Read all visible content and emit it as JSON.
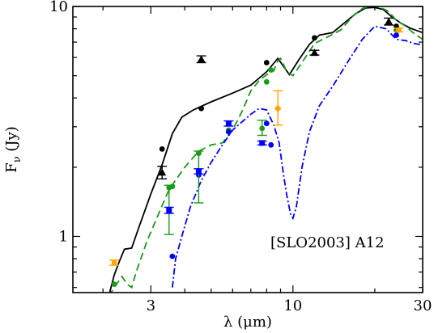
{
  "chart_data": {
    "type": "scatter",
    "annotation": "[SLO2003] A12",
    "xlabel": "λ (μm)",
    "ylabel": "F_ν (Jy)",
    "ylabel_main": "F",
    "ylabel_sub": "ν",
    "ylabel_rest": " (Jy)",
    "x_scale": "log",
    "y_scale": "log",
    "xlim": [
      1.55,
      30
    ],
    "ylim": [
      0.57,
      10
    ],
    "x_ticks": [
      {
        "value": 3,
        "label": "3"
      },
      {
        "value": 10,
        "label": "10"
      },
      {
        "value": 30,
        "label": "30"
      }
    ],
    "y_ticks": [
      {
        "value": 1,
        "label": "1"
      },
      {
        "value": 10,
        "label": "10"
      }
    ],
    "colors": {
      "black": "#000000",
      "green": "#1a9a1a",
      "blue": "#0000ff",
      "orange": "#ffa500"
    },
    "lines": [
      {
        "color": "black",
        "dash": "solid",
        "points": [
          [
            2.1,
            0.55
          ],
          [
            2.2,
            0.68
          ],
          [
            2.3,
            0.78
          ],
          [
            2.4,
            0.88
          ],
          [
            2.55,
            0.89
          ],
          [
            2.7,
            1.08
          ],
          [
            3.0,
            1.53
          ],
          [
            3.3,
            2.05
          ],
          [
            3.6,
            2.8
          ],
          [
            3.9,
            3.3
          ],
          [
            4.3,
            3.55
          ],
          [
            5.0,
            3.85
          ],
          [
            6.0,
            4.2
          ],
          [
            7.0,
            4.55
          ],
          [
            8.0,
            5.2
          ],
          [
            8.8,
            5.95
          ],
          [
            9.7,
            5.05
          ],
          [
            10.5,
            5.85
          ],
          [
            11.5,
            6.85
          ],
          [
            12.5,
            7.5
          ],
          [
            14.0,
            7.7
          ],
          [
            15.5,
            8.5
          ],
          [
            17.0,
            9.3
          ],
          [
            18.5,
            9.85
          ],
          [
            20.0,
            9.9
          ],
          [
            21.5,
            9.7
          ],
          [
            23.0,
            9.05
          ],
          [
            25.0,
            8.45
          ],
          [
            27.0,
            8.05
          ],
          [
            29.0,
            7.8
          ],
          [
            30.0,
            7.7
          ]
        ]
      },
      {
        "color": "green",
        "dash": "dashed",
        "points": [
          [
            2.1,
            0.55
          ],
          [
            2.2,
            0.6
          ],
          [
            2.35,
            0.67
          ],
          [
            2.45,
            0.62
          ],
          [
            2.55,
            0.6
          ],
          [
            2.65,
            0.7
          ],
          [
            2.9,
            0.95
          ],
          [
            3.2,
            1.25
          ],
          [
            3.5,
            1.6
          ],
          [
            4.0,
            2.0
          ],
          [
            4.5,
            2.35
          ],
          [
            5.0,
            2.5
          ],
          [
            5.5,
            2.55
          ],
          [
            6.0,
            2.9
          ],
          [
            6.5,
            3.5
          ],
          [
            7.0,
            4.3
          ],
          [
            7.5,
            4.75
          ],
          [
            8.0,
            5.05
          ],
          [
            8.5,
            5.25
          ],
          [
            8.8,
            5.8
          ],
          [
            9.0,
            5.95
          ],
          [
            9.5,
            5.2
          ],
          [
            10.0,
            5.0
          ],
          [
            11.0,
            5.9
          ],
          [
            12.0,
            6.9
          ],
          [
            13.5,
            7.4
          ],
          [
            15.0,
            7.9
          ],
          [
            16.5,
            9.0
          ],
          [
            18.0,
            9.8
          ],
          [
            19.5,
            10.1
          ],
          [
            21.0,
            9.9
          ],
          [
            22.5,
            9.5
          ],
          [
            24.0,
            8.7
          ],
          [
            26.0,
            8.2
          ],
          [
            28.0,
            7.6
          ],
          [
            30.0,
            7.2
          ]
        ]
      },
      {
        "color": "blue",
        "dash": "dashdot",
        "points": [
          [
            3.6,
            0.6
          ],
          [
            3.7,
            0.8
          ],
          [
            3.9,
            1.0
          ],
          [
            4.2,
            1.35
          ],
          [
            4.6,
            1.75
          ],
          [
            5.0,
            2.1
          ],
          [
            5.5,
            2.5
          ],
          [
            6.0,
            2.9
          ],
          [
            6.5,
            3.15
          ],
          [
            7.0,
            3.4
          ],
          [
            7.5,
            3.6
          ],
          [
            8.0,
            3.55
          ],
          [
            8.5,
            3.05
          ],
          [
            8.9,
            2.55
          ],
          [
            9.2,
            1.9
          ],
          [
            9.5,
            1.5
          ],
          [
            9.8,
            1.25
          ],
          [
            10.0,
            1.2
          ],
          [
            10.3,
            1.35
          ],
          [
            10.8,
            2.0
          ],
          [
            11.5,
            2.85
          ],
          [
            12.5,
            3.7
          ],
          [
            14.0,
            4.5
          ],
          [
            16.0,
            5.8
          ],
          [
            18.0,
            7.2
          ],
          [
            20.0,
            8.2
          ],
          [
            22.0,
            8.0
          ],
          [
            24.0,
            7.2
          ],
          [
            26.0,
            7.1
          ],
          [
            28.0,
            6.9
          ],
          [
            30.0,
            6.8
          ]
        ]
      }
    ],
    "points": [
      {
        "x": 3.3,
        "y": 2.4,
        "color": "black",
        "shape": "circle"
      },
      {
        "x": 4.6,
        "y": 3.6,
        "color": "black",
        "shape": "circle"
      },
      {
        "x": 8.0,
        "y": 5.7,
        "color": "black",
        "shape": "circle"
      },
      {
        "x": 12.0,
        "y": 7.3,
        "color": "black",
        "shape": "circle"
      },
      {
        "x": 24.0,
        "y": 8.2,
        "color": "black",
        "shape": "circle"
      },
      {
        "x": 2.2,
        "y": 0.62,
        "color": "green",
        "shape": "circle"
      },
      {
        "x": 3.6,
        "y": 1.65,
        "color": "green",
        "shape": "circle"
      },
      {
        "x": 4.5,
        "y": 2.3,
        "color": "green",
        "shape": "circle"
      },
      {
        "x": 5.8,
        "y": 2.9,
        "color": "green",
        "shape": "circle"
      },
      {
        "x": 8.0,
        "y": 4.7,
        "color": "green",
        "shape": "circle"
      },
      {
        "x": 8.3,
        "y": 5.3,
        "color": "green",
        "shape": "circle"
      },
      {
        "x": 24.0,
        "y": 7.9,
        "color": "green",
        "shape": "circle"
      },
      {
        "x": 3.6,
        "y": 0.82,
        "color": "blue",
        "shape": "circle"
      },
      {
        "x": 4.5,
        "y": 1.85,
        "color": "blue",
        "shape": "circle"
      },
      {
        "x": 5.8,
        "y": 2.85,
        "color": "blue",
        "shape": "circle"
      },
      {
        "x": 8.0,
        "y": 3.1,
        "color": "blue",
        "shape": "circle"
      },
      {
        "x": 8.3,
        "y": 2.5,
        "color": "blue",
        "shape": "circle"
      },
      {
        "x": 24.0,
        "y": 7.5,
        "color": "blue",
        "shape": "circle"
      },
      {
        "x": 3.3,
        "y": 1.9,
        "color": "black",
        "shape": "triangle",
        "err_lo": 1.78,
        "err_hi": 2.02
      },
      {
        "x": 4.6,
        "y": 5.9,
        "color": "black",
        "shape": "triangle",
        "err_lo": 5.7,
        "err_hi": 6.1
      },
      {
        "x": 12.0,
        "y": 6.3,
        "color": "black",
        "shape": "triangle",
        "err_lo": 6.15,
        "err_hi": 6.45
      },
      {
        "x": 22.5,
        "y": 8.6,
        "color": "black",
        "shape": "triangle",
        "err_lo": 8.3,
        "err_hi": 8.9
      },
      {
        "x": 3.5,
        "y": 1.63,
        "color": "green",
        "shape": "circle",
        "err_lo": 1.02,
        "err_hi": 1.67
      },
      {
        "x": 4.5,
        "y": 2.3,
        "color": "green",
        "shape": "circle",
        "err_lo": 1.4,
        "err_hi": 2.35
      },
      {
        "x": 7.7,
        "y": 2.95,
        "color": "green",
        "shape": "circle",
        "err_lo": 2.75,
        "err_hi": 3.2
      },
      {
        "x": 3.5,
        "y": 1.3,
        "color": "blue",
        "shape": "square",
        "err_lo": 1.26,
        "err_hi": 1.34
      },
      {
        "x": 4.5,
        "y": 1.92,
        "color": "blue",
        "shape": "square",
        "err_lo": 1.87,
        "err_hi": 1.97
      },
      {
        "x": 5.8,
        "y": 3.1,
        "color": "blue",
        "shape": "square",
        "err_lo": 3.02,
        "err_hi": 3.18
      },
      {
        "x": 7.7,
        "y": 2.55,
        "color": "blue",
        "shape": "square",
        "err_lo": 2.5,
        "err_hi": 2.6
      },
      {
        "x": 2.2,
        "y": 0.77,
        "color": "orange",
        "shape": "circle",
        "err_lo": 0.75,
        "err_hi": 0.79
      },
      {
        "x": 8.8,
        "y": 3.6,
        "color": "orange",
        "shape": "diamond",
        "err_lo": 3.05,
        "err_hi": 4.3
      },
      {
        "x": 24.5,
        "y": 7.9,
        "color": "orange",
        "shape": "circle",
        "err_lo": 7.75,
        "err_hi": 8.05
      }
    ]
  }
}
